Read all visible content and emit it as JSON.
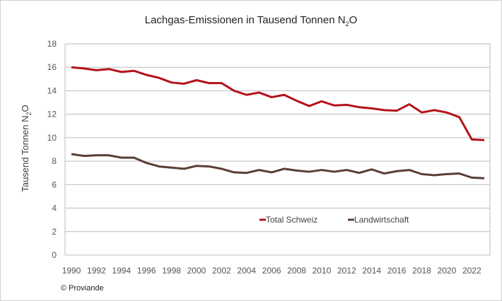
{
  "chart_data": {
    "type": "line",
    "title": "Lachgas-Emissionen in Tausend Tonnen N2O",
    "title_main": "Lachgas-Emissionen in Tausend Tonnen N",
    "title_sub": "2",
    "title_end": "O",
    "ylabel_main": "Tausend Tonnen N",
    "ylabel_sub": "2",
    "ylabel_end": "O",
    "xlabel": "",
    "ylim": [
      0,
      18
    ],
    "yticks": [
      0,
      2,
      4,
      6,
      8,
      10,
      12,
      14,
      16,
      18
    ],
    "xticks": [
      1990,
      1992,
      1994,
      1996,
      1998,
      2000,
      2002,
      2004,
      2006,
      2008,
      2010,
      2012,
      2014,
      2016,
      2018,
      2020,
      2022
    ],
    "grid": true,
    "legend": "bottom-right inside",
    "x": [
      1990,
      1991,
      1992,
      1993,
      1994,
      1995,
      1996,
      1997,
      1998,
      1999,
      2000,
      2001,
      2002,
      2003,
      2004,
      2005,
      2006,
      2007,
      2008,
      2009,
      2010,
      2011,
      2012,
      2013,
      2014,
      2015,
      2016,
      2017,
      2018,
      2019,
      2020,
      2021,
      2022,
      2023
    ],
    "series": [
      {
        "name": "Total Schweiz",
        "color": "#b5121b",
        "values": [
          16.0,
          15.9,
          15.75,
          15.85,
          15.6,
          15.7,
          15.35,
          15.1,
          14.7,
          14.6,
          14.9,
          14.65,
          14.65,
          14.0,
          13.65,
          13.85,
          13.45,
          13.65,
          13.15,
          12.7,
          13.1,
          12.75,
          12.8,
          12.6,
          12.5,
          12.35,
          12.3,
          12.85,
          12.15,
          12.35,
          12.15,
          11.75,
          9.85,
          9.8
        ]
      },
      {
        "name": "Landwirtschaft",
        "color": "#5a3e33",
        "values": [
          8.6,
          8.45,
          8.5,
          8.5,
          8.3,
          8.3,
          7.85,
          7.55,
          7.45,
          7.35,
          7.6,
          7.55,
          7.35,
          7.05,
          7.0,
          7.25,
          7.05,
          7.35,
          7.2,
          7.1,
          7.25,
          7.1,
          7.25,
          7.0,
          7.3,
          6.95,
          7.15,
          7.25,
          6.9,
          6.8,
          6.9,
          6.95,
          6.6,
          6.55
        ]
      }
    ]
  },
  "credit": "© Proviande"
}
